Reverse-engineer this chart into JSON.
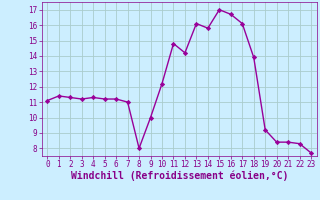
{
  "hours": [
    0,
    1,
    2,
    3,
    4,
    5,
    6,
    7,
    8,
    9,
    10,
    11,
    12,
    13,
    14,
    15,
    16,
    17,
    18,
    19,
    20,
    21,
    22,
    23
  ],
  "values": [
    11.1,
    11.4,
    11.3,
    11.2,
    11.3,
    11.2,
    11.2,
    11.0,
    8.0,
    10.0,
    12.2,
    14.8,
    14.2,
    16.1,
    15.8,
    17.0,
    16.7,
    16.1,
    13.9,
    9.2,
    8.4,
    8.4,
    8.3,
    7.7
  ],
  "line_color": "#990099",
  "marker": "D",
  "marker_size": 2.2,
  "bg_color": "#cceeff",
  "grid_color": "#aacccc",
  "xlabel": "Windchill (Refroidissement éolien,°C)",
  "xlim": [
    -0.5,
    23.5
  ],
  "ylim": [
    7.5,
    17.5
  ],
  "yticks": [
    8,
    9,
    10,
    11,
    12,
    13,
    14,
    15,
    16,
    17
  ],
  "xticks": [
    0,
    1,
    2,
    3,
    4,
    5,
    6,
    7,
    8,
    9,
    10,
    11,
    12,
    13,
    14,
    15,
    16,
    17,
    18,
    19,
    20,
    21,
    22,
    23
  ],
  "tick_label_size": 5.5,
  "xlabel_size": 7.0,
  "tick_color": "#880088",
  "line_width": 1.0
}
